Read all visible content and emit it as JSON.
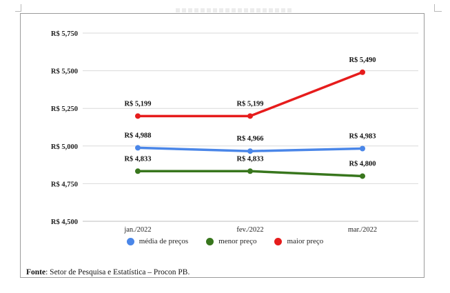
{
  "source": {
    "label": "Fonte",
    "text": ": Setor de Pesquisa e Estatística – Procon PB."
  },
  "chart_data": {
    "type": "line",
    "title": "",
    "xlabel": "",
    "ylabel": "",
    "categories": [
      "jan./2022",
      "fev./2022",
      "mar./2022"
    ],
    "ylim": [
      4.5,
      5.75
    ],
    "yticks": [
      4.5,
      4.75,
      5.0,
      5.25,
      5.5,
      5.75
    ],
    "ytick_labels": [
      "R$ 4,500",
      "R$ 4,750",
      "R$ 5,000",
      "R$ 5,250",
      "R$ 5,500",
      "R$ 5,750"
    ],
    "grid": true,
    "legend_position": "bottom",
    "series": [
      {
        "name": "média de preços",
        "color": "#4a86e8",
        "values": [
          4.988,
          4.966,
          4.983
        ],
        "labels": [
          "R$ 4,988",
          "R$ 4,966",
          "R$ 4,983"
        ]
      },
      {
        "name": "menor preço",
        "color": "#38761d",
        "values": [
          4.833,
          4.833,
          4.8
        ],
        "labels": [
          "R$ 4,833",
          "R$ 4,833",
          "R$ 4,800"
        ]
      },
      {
        "name": "maior preço",
        "color": "#e61c1c",
        "values": [
          5.199,
          5.199,
          5.49
        ],
        "labels": [
          "R$ 5,199",
          "R$ 5,199",
          "R$ 5,490"
        ]
      }
    ]
  }
}
